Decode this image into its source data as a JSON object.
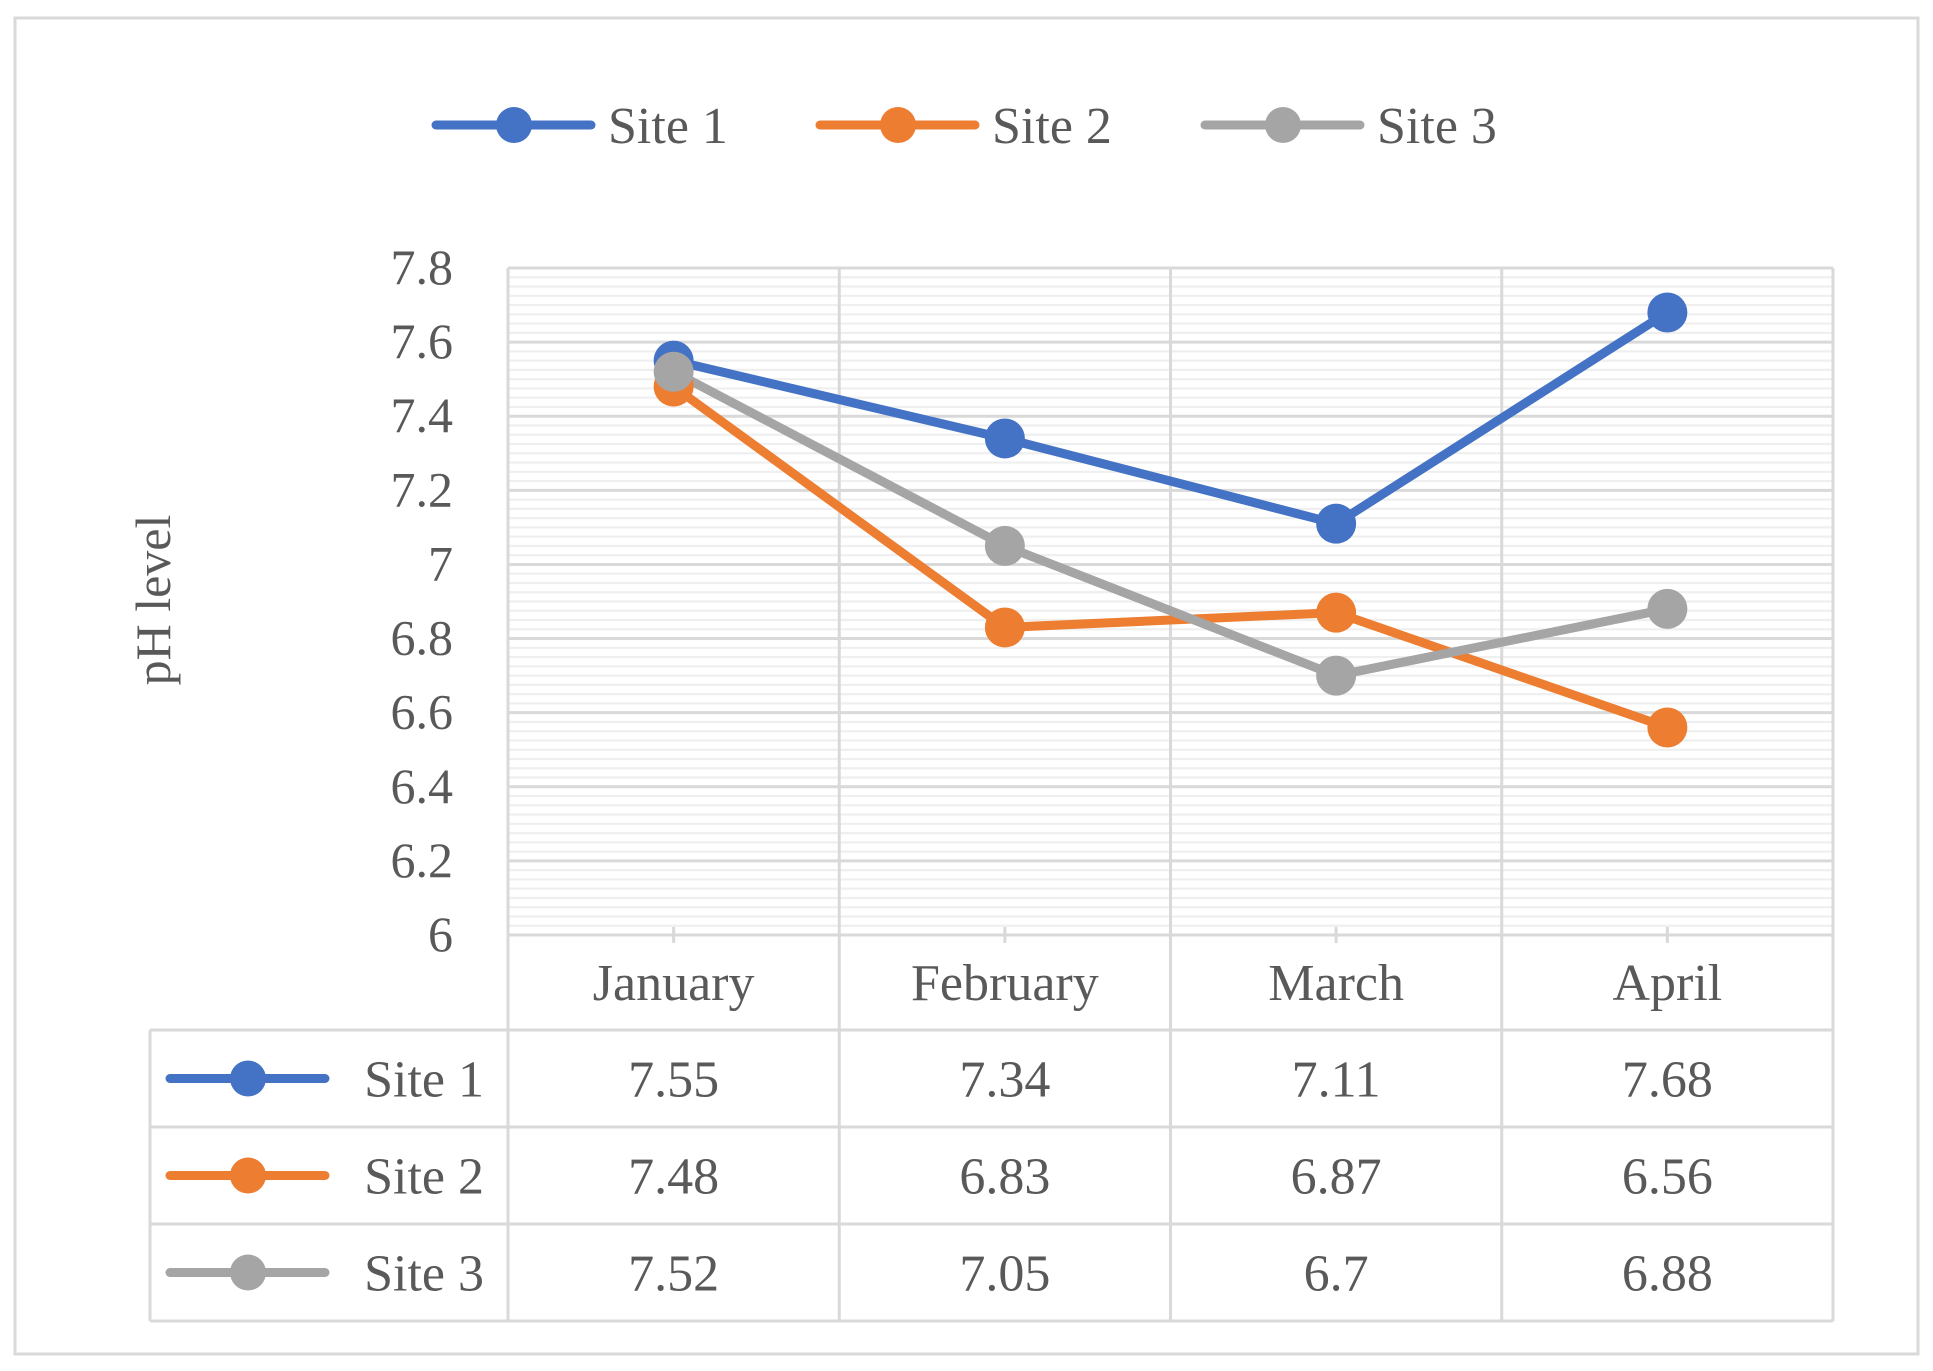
{
  "chart_data": {
    "type": "line",
    "title": "",
    "xlabel": "",
    "ylabel": "pH level",
    "categories": [
      "January",
      "February",
      "March",
      "April"
    ],
    "ylim": [
      6,
      7.8
    ],
    "y_ticks": [
      "6",
      "6.2",
      "6.4",
      "6.6",
      "6.8",
      "7",
      "7.2",
      "7.4",
      "7.6",
      "7.8"
    ],
    "grid": "major and minor horizontal, vertical category gridlines",
    "legend_position": "top",
    "data_table": true,
    "series": [
      {
        "name": "Site 1",
        "color": "#4472C4",
        "values": [
          7.55,
          7.34,
          7.11,
          7.68
        ],
        "labels": [
          "7.55",
          "7.34",
          "7.11",
          "7.68"
        ]
      },
      {
        "name": "Site 2",
        "color": "#ED7D31",
        "values": [
          7.48,
          6.83,
          6.87,
          6.56
        ],
        "labels": [
          "7.48",
          "6.83",
          "6.87",
          "6.56"
        ]
      },
      {
        "name": "Site 3",
        "color": "#A5A5A5",
        "values": [
          7.52,
          7.05,
          6.7,
          6.88
        ],
        "labels": [
          "7.52",
          "7.05",
          "6.7",
          "6.88"
        ]
      }
    ]
  }
}
